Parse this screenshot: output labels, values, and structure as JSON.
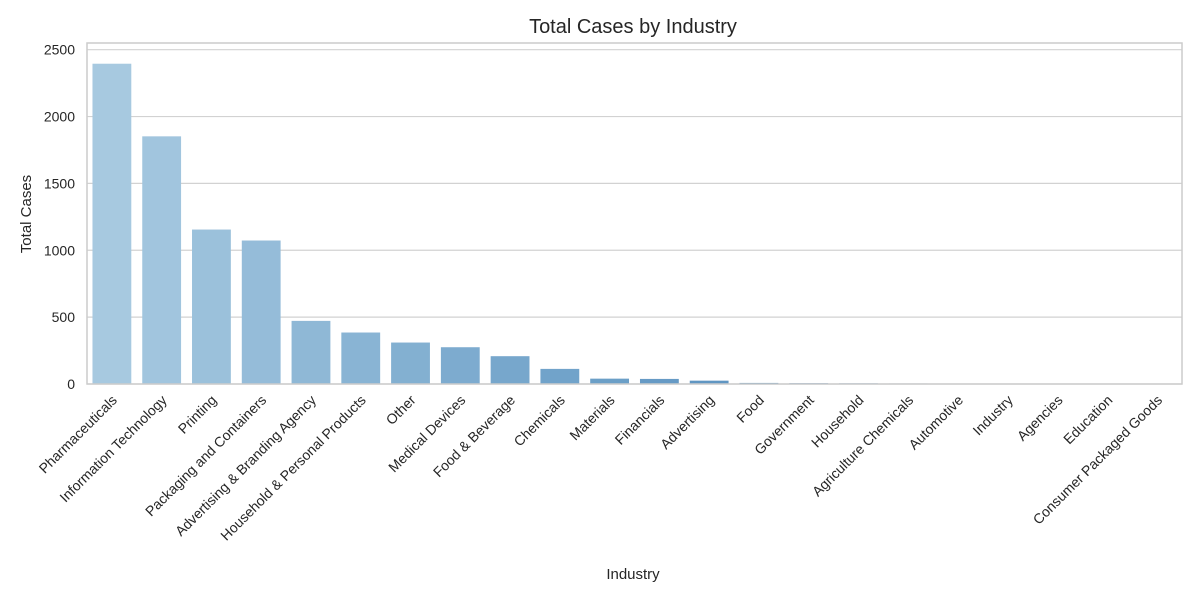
{
  "chart_data": {
    "type": "bar",
    "title": "Total Cases by Industry",
    "xlabel": "Industry",
    "ylabel": "Total Cases",
    "ylim": [
      0,
      2550
    ],
    "yticks": [
      0,
      500,
      1000,
      1500,
      2000,
      2500
    ],
    "grid": "horizontal",
    "categories": [
      "Pharmaceuticals",
      "Information Technology",
      "Printing",
      "Packaging and Containers",
      "Advertising & Branding Agency",
      "Household & Personal Products",
      "Other",
      "Medical Devices",
      "Food & Beverage",
      "Chemicals",
      "Materials",
      "Financials",
      "Advertising",
      "Food",
      "Government",
      "Household",
      "Agriculture Chemicals",
      "Automotive",
      "Industry",
      "Agencies",
      "Education",
      "Consumer Packaged Goods"
    ],
    "values": [
      2395,
      1852,
      1155,
      1073,
      472,
      385,
      310,
      275,
      208,
      113,
      40,
      38,
      25,
      8,
      6,
      5,
      4,
      3,
      2,
      2,
      1,
      1
    ],
    "colors": {
      "start": "#a7c9e0",
      "end": "#2a70ac",
      "grid": "#d2d2d2",
      "frame": "#cccccc"
    }
  }
}
